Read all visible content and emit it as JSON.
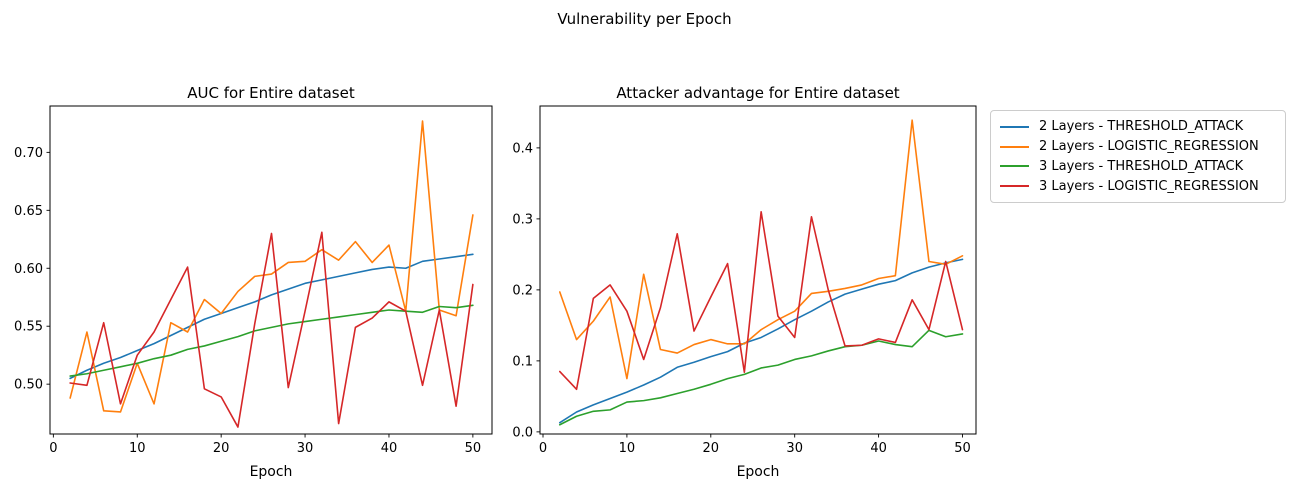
{
  "suptitle": "Vulnerability per Epoch",
  "legend": {
    "entries": [
      {
        "label": "2 Layers - THRESHOLD_ATTACK",
        "color": "#1f77b4"
      },
      {
        "label": "2 Layers - LOGISTIC_REGRESSION",
        "color": "#ff7f0e"
      },
      {
        "label": "3 Layers - THRESHOLD_ATTACK",
        "color": "#2ca02c"
      },
      {
        "label": "3 Layers - LOGISTIC_REGRESSION",
        "color": "#d62728"
      }
    ]
  },
  "chart_data": [
    {
      "type": "line",
      "title": "AUC for Entire dataset",
      "xlabel": "Epoch",
      "ylabel": "",
      "grid": false,
      "xlim": [
        -0.4,
        52.28
      ],
      "ylim": [
        0.457,
        0.74
      ],
      "xticks": {
        "values": [
          0,
          10,
          20,
          30,
          40,
          50
        ],
        "labels": [
          "0",
          "10",
          "20",
          "30",
          "40",
          "50"
        ]
      },
      "yticks": {
        "values": [
          0.5,
          0.55,
          0.6,
          0.65,
          0.7
        ],
        "labels": [
          "0.50",
          "0.55",
          "0.60",
          "0.65",
          "0.70"
        ]
      },
      "x": [
        2,
        4,
        6,
        8,
        10,
        12,
        14,
        16,
        18,
        20,
        22,
        24,
        26,
        28,
        30,
        32,
        34,
        36,
        38,
        40,
        42,
        44,
        46,
        48,
        50
      ],
      "series": [
        {
          "name": "2 Layers - THRESHOLD_ATTACK",
          "color": "#1f77b4",
          "values": [
            0.505,
            0.512,
            0.518,
            0.523,
            0.529,
            0.535,
            0.542,
            0.549,
            0.556,
            0.561,
            0.566,
            0.571,
            0.577,
            0.582,
            0.587,
            0.59,
            0.593,
            0.596,
            0.599,
            0.601,
            0.6,
            0.606,
            0.608,
            0.61,
            0.612
          ]
        },
        {
          "name": "2 Layers - LOGISTIC_REGRESSION",
          "color": "#ff7f0e",
          "values": [
            0.488,
            0.545,
            0.477,
            0.476,
            0.518,
            0.483,
            0.553,
            0.545,
            0.573,
            0.561,
            0.58,
            0.593,
            0.595,
            0.605,
            0.606,
            0.616,
            0.607,
            0.623,
            0.605,
            0.62,
            0.563,
            0.727,
            0.564,
            0.559,
            0.646
          ]
        },
        {
          "name": "3 Layers - THRESHOLD_ATTACK",
          "color": "#2ca02c",
          "values": [
            0.507,
            0.509,
            0.512,
            0.515,
            0.518,
            0.522,
            0.525,
            0.53,
            0.533,
            0.537,
            0.541,
            0.546,
            0.549,
            0.552,
            0.554,
            0.556,
            0.558,
            0.56,
            0.562,
            0.564,
            0.563,
            0.562,
            0.567,
            0.566,
            0.568
          ]
        },
        {
          "name": "3 Layers - LOGISTIC_REGRESSION",
          "color": "#d62728",
          "values": [
            0.501,
            0.499,
            0.553,
            0.483,
            0.525,
            0.545,
            0.573,
            0.601,
            0.496,
            0.489,
            0.463,
            0.552,
            0.63,
            0.497,
            0.563,
            0.631,
            0.466,
            0.549,
            0.557,
            0.571,
            0.563,
            0.499,
            0.564,
            0.481,
            0.586
          ]
        }
      ]
    },
    {
      "type": "line",
      "title": "Attacker advantage for Entire dataset",
      "xlabel": "Epoch",
      "ylabel": "",
      "grid": false,
      "xlim": [
        -0.358,
        51.61
      ],
      "ylim": [
        -0.003,
        0.459
      ],
      "xticks": {
        "values": [
          0,
          10,
          20,
          30,
          40,
          50
        ],
        "labels": [
          "0",
          "10",
          "20",
          "30",
          "40",
          "50"
        ]
      },
      "yticks": {
        "values": [
          0.0,
          0.1,
          0.2,
          0.3,
          0.4
        ],
        "labels": [
          "0.0",
          "0.1",
          "0.2",
          "0.3",
          "0.4"
        ]
      },
      "x": [
        2,
        4,
        6,
        8,
        10,
        12,
        14,
        16,
        18,
        20,
        22,
        24,
        26,
        28,
        30,
        32,
        34,
        36,
        38,
        40,
        42,
        44,
        46,
        48,
        50
      ],
      "series": [
        {
          "name": "2 Layers - THRESHOLD_ATTACK",
          "color": "#1f77b4",
          "values": [
            0.013,
            0.028,
            0.038,
            0.047,
            0.056,
            0.066,
            0.077,
            0.091,
            0.098,
            0.106,
            0.113,
            0.125,
            0.133,
            0.145,
            0.158,
            0.17,
            0.183,
            0.194,
            0.201,
            0.208,
            0.213,
            0.224,
            0.232,
            0.238,
            0.243
          ]
        },
        {
          "name": "2 Layers - LOGISTIC_REGRESSION",
          "color": "#ff7f0e",
          "values": [
            0.197,
            0.13,
            0.156,
            0.19,
            0.075,
            0.222,
            0.116,
            0.111,
            0.123,
            0.13,
            0.124,
            0.124,
            0.144,
            0.158,
            0.17,
            0.195,
            0.198,
            0.202,
            0.207,
            0.216,
            0.22,
            0.439,
            0.24,
            0.236,
            0.248
          ]
        },
        {
          "name": "3 Layers - THRESHOLD_ATTACK",
          "color": "#2ca02c",
          "values": [
            0.01,
            0.022,
            0.029,
            0.031,
            0.042,
            0.044,
            0.048,
            0.054,
            0.06,
            0.067,
            0.075,
            0.081,
            0.09,
            0.094,
            0.102,
            0.107,
            0.114,
            0.12,
            0.122,
            0.128,
            0.123,
            0.12,
            0.143,
            0.134,
            0.138
          ]
        },
        {
          "name": "3 Layers - LOGISTIC_REGRESSION",
          "color": "#d62728",
          "values": [
            0.085,
            0.06,
            0.188,
            0.207,
            0.17,
            0.102,
            0.175,
            0.279,
            0.142,
            0.19,
            0.237,
            0.084,
            0.31,
            0.163,
            0.133,
            0.303,
            0.2,
            0.121,
            0.122,
            0.131,
            0.126,
            0.186,
            0.144,
            0.24,
            0.144
          ]
        }
      ]
    }
  ]
}
